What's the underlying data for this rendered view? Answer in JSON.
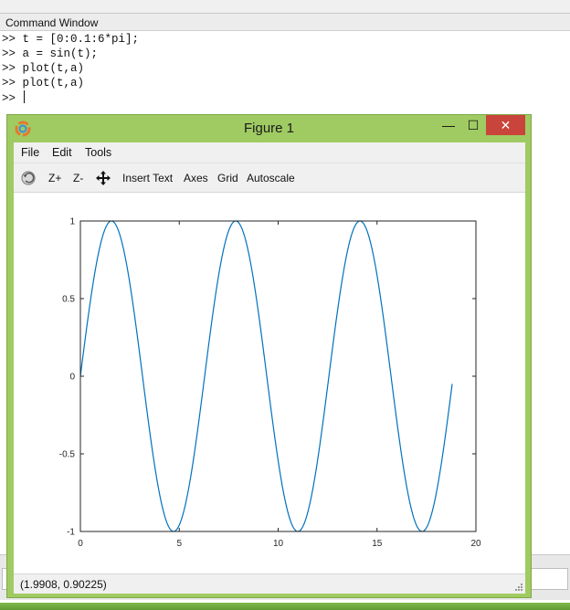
{
  "command_window": {
    "title": "Command Window",
    "lines": [
      ">> t = [0:0.1:6*pi];",
      ">> a = sin(t);",
      ">> plot(t,a)",
      ">> plot(t,a)"
    ],
    "prompt": ">> "
  },
  "figure": {
    "title": "Figure 1",
    "window_controls": {
      "minimize": "—",
      "maximize": "☐",
      "close": "✕"
    },
    "menu": {
      "file": "File",
      "edit": "Edit",
      "tools": "Tools"
    },
    "toolbar": {
      "zoom_in": "Z+",
      "zoom_out": "Z-",
      "insert_text": "Insert Text",
      "axes": "Axes",
      "grid": "Grid",
      "autoscale": "Autoscale"
    },
    "status": "(1.9908, 0.90225)"
  },
  "colors": {
    "line": "#0072bd",
    "window_frame": "#9fcb62",
    "close_button": "#c9443a"
  },
  "icons": [
    "rotate-icon",
    "pan-icon",
    "octave-logo-icon"
  ],
  "chart_data": {
    "type": "line",
    "function": "sin(t)",
    "x_start": 0,
    "x_step": 0.1,
    "x_end": 18.8,
    "xlim": [
      0,
      20
    ],
    "ylim": [
      -1,
      1
    ],
    "xticks": [
      0,
      5,
      10,
      15,
      20
    ],
    "yticks": [
      -1,
      -0.5,
      0,
      0.5,
      1
    ],
    "xtick_labels": [
      "0",
      "5",
      "10",
      "15",
      "20"
    ],
    "ytick_labels": [
      "-1",
      "-0.5",
      "0",
      "0.5",
      "1"
    ],
    "grid": false,
    "series": [
      {
        "color": "#0072bd"
      }
    ]
  }
}
